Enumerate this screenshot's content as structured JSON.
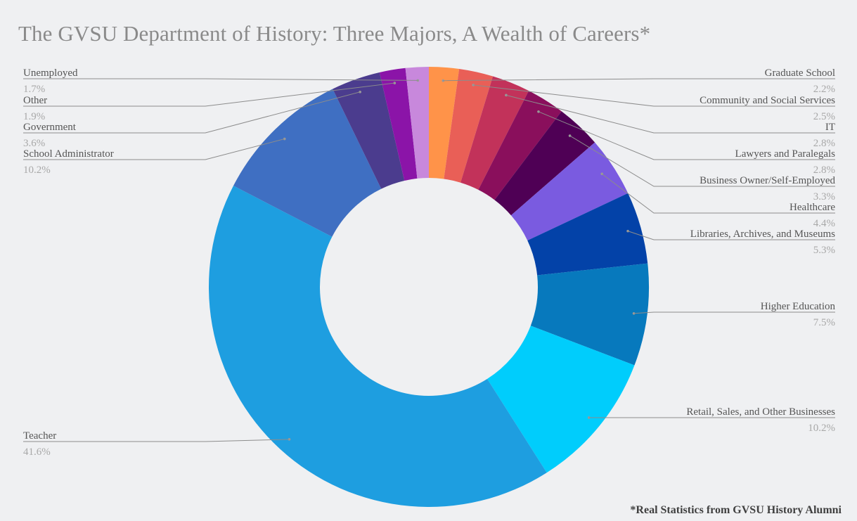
{
  "chart_data": {
    "type": "pie",
    "variant": "donut",
    "title": "The GVSU Department of History: Three Majors, A Wealth of Careers*",
    "footnote": "*Real Statistics from GVSU History Alumni",
    "start": "top, clockwise",
    "slices": [
      {
        "label": "Graduate School",
        "value": 2.2,
        "display": "2.2%",
        "color": "#ff9349",
        "side": "right"
      },
      {
        "label": "Community and Social Services",
        "value": 2.5,
        "display": "2.5%",
        "color": "#e95f57",
        "side": "right"
      },
      {
        "label": "IT",
        "value": 2.8,
        "display": "2.8%",
        "color": "#c2325a",
        "side": "right"
      },
      {
        "label": "Lawyers and Paralegals",
        "value": 2.8,
        "display": "2.8%",
        "color": "#8a0f5c",
        "side": "right"
      },
      {
        "label": "Business Owner/Self-Employed",
        "value": 3.3,
        "display": "3.3%",
        "color": "#4f0055",
        "side": "right"
      },
      {
        "label": "Healthcare",
        "value": 4.4,
        "display": "4.4%",
        "color": "#7a5be0",
        "side": "right"
      },
      {
        "label": "Libraries, Archives, and Museums",
        "value": 5.3,
        "display": "5.3%",
        "color": "#0342a8",
        "side": "right"
      },
      {
        "label": "Higher Education",
        "value": 7.5,
        "display": "7.5%",
        "color": "#0779bd",
        "side": "right"
      },
      {
        "label": "Retail, Sales, and Other Businesses",
        "value": 10.2,
        "display": "10.2%",
        "color": "#00cdfc",
        "side": "right"
      },
      {
        "label": "Teacher",
        "value": 41.6,
        "display": "41.6%",
        "color": "#1e9ee0",
        "side": "left"
      },
      {
        "label": "School Administrator",
        "value": 10.2,
        "display": "10.2%",
        "color": "#3f6fc2",
        "side": "left"
      },
      {
        "label": "Government",
        "value": 3.6,
        "display": "3.6%",
        "color": "#4b3c8e",
        "side": "left"
      },
      {
        "label": "Other",
        "value": 1.9,
        "display": "1.9%",
        "color": "#8b14a8",
        "side": "left"
      },
      {
        "label": "Unemployed",
        "value": 1.7,
        "display": "1.7%",
        "color": "#c888dc",
        "side": "left"
      }
    ]
  }
}
